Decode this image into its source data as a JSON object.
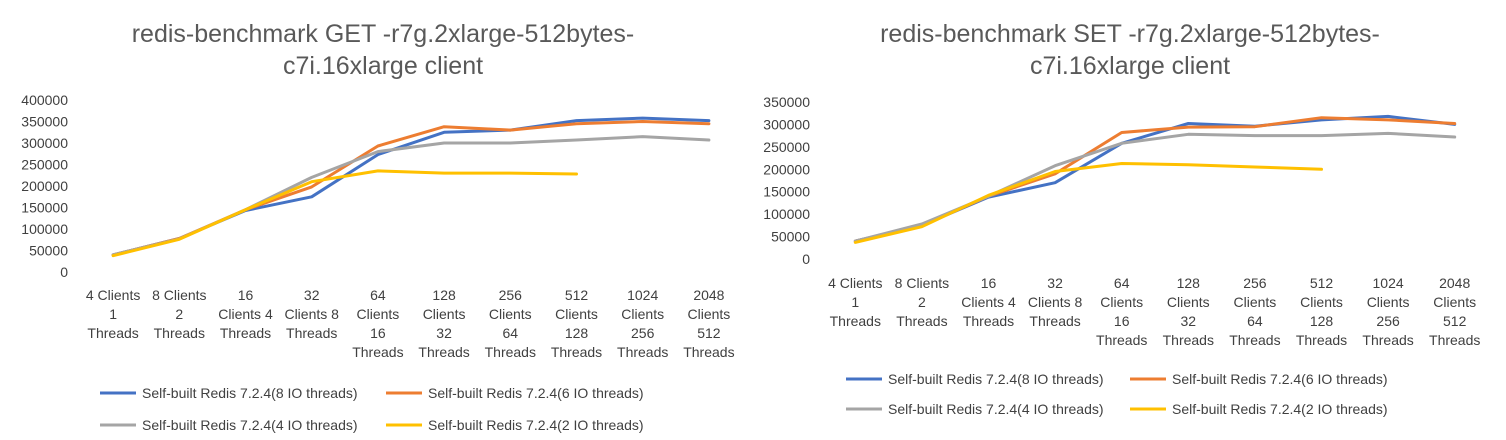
{
  "chart_data": [
    {
      "type": "line",
      "title_lines": [
        "redis-benchmark GET -r7g.2xlarge-512bytes-",
        "c7i.16xlarge client"
      ],
      "categories": [
        [
          "4 Clients",
          "1",
          "Threads"
        ],
        [
          "8 Clients",
          "2",
          "Threads"
        ],
        [
          "16",
          "Clients 4",
          "Threads"
        ],
        [
          "32",
          "Clients 8",
          "Threads"
        ],
        [
          "64",
          "Clients",
          "16",
          "Threads"
        ],
        [
          "128",
          "Clients",
          "32",
          "Threads"
        ],
        [
          "256",
          "Clients",
          "64",
          "Threads"
        ],
        [
          "512",
          "Clients",
          "128",
          "Threads"
        ],
        [
          "1024",
          "Clients",
          "256",
          "Threads"
        ],
        [
          "2048",
          "Clients",
          "512",
          "Threads"
        ]
      ],
      "ylim": [
        0,
        400000
      ],
      "yticks": [
        "0",
        "50000",
        "100000",
        "150000",
        "200000",
        "250000",
        "300000",
        "350000",
        "400000"
      ],
      "grid": false,
      "legend_position": "bottom",
      "series": [
        {
          "name": "Self-built Redis 7.2.4(8 IO threads)",
          "color": "#4472C4",
          "values": [
            40000,
            78000,
            143000,
            175000,
            273000,
            325000,
            330000,
            352000,
            358000,
            352000
          ]
        },
        {
          "name": "Self-built Redis 7.2.4(6 IO threads)",
          "color": "#ED7D31",
          "values": [
            40000,
            78000,
            145000,
            198000,
            293000,
            338000,
            330000,
            345000,
            350000,
            345000
          ]
        },
        {
          "name": "Self-built Redis 7.2.4(4 IO threads)",
          "color": "#A5A5A5",
          "values": [
            40000,
            77000,
            145000,
            220000,
            280000,
            300000,
            300000,
            307000,
            315000,
            307000
          ]
        },
        {
          "name": "Self-built Redis 7.2.4(2 IO threads)",
          "color": "#FFC000",
          "values": [
            38000,
            76000,
            145000,
            210000,
            235000,
            230000,
            230000,
            228000,
            null,
            null
          ]
        }
      ]
    },
    {
      "type": "line",
      "title_lines": [
        "redis-benchmark SET -r7g.2xlarge-512bytes-",
        "c7i.16xlarge client"
      ],
      "categories": [
        [
          "4 Clients",
          "1",
          "Threads"
        ],
        [
          "8 Clients",
          "2",
          "Threads"
        ],
        [
          "16",
          "Clients 4",
          "Threads"
        ],
        [
          "32",
          "Clients 8",
          "Threads"
        ],
        [
          "64",
          "Clients",
          "16",
          "Threads"
        ],
        [
          "128",
          "Clients",
          "32",
          "Threads"
        ],
        [
          "256",
          "Clients",
          "64",
          "Threads"
        ],
        [
          "512",
          "Clients",
          "128",
          "Threads"
        ],
        [
          "1024",
          "Clients",
          "256",
          "Threads"
        ],
        [
          "2048",
          "Clients",
          "512",
          "Threads"
        ]
      ],
      "ylim": [
        0,
        350000
      ],
      "yticks": [
        "0",
        "50000",
        "100000",
        "150000",
        "200000",
        "250000",
        "300000",
        "350000"
      ],
      "grid": false,
      "legend_position": "bottom",
      "series": [
        {
          "name": "Self-built Redis 7.2.4(8 IO threads)",
          "color": "#4472C4",
          "values": [
            40000,
            75000,
            138000,
            170000,
            258000,
            302000,
            296000,
            310000,
            318000,
            300000
          ]
        },
        {
          "name": "Self-built Redis 7.2.4(6 IO threads)",
          "color": "#ED7D31",
          "values": [
            40000,
            75000,
            140000,
            190000,
            282000,
            294000,
            295000,
            315000,
            310000,
            302000
          ]
        },
        {
          "name": "Self-built Redis 7.2.4(4 IO threads)",
          "color": "#A5A5A5",
          "values": [
            40000,
            78000,
            140000,
            208000,
            258000,
            278000,
            275000,
            275000,
            280000,
            272000
          ]
        },
        {
          "name": "Self-built Redis 7.2.4(2 IO threads)",
          "color": "#FFC000",
          "values": [
            37000,
            72000,
            142000,
            195000,
            213000,
            210000,
            205000,
            200000,
            null,
            null
          ]
        }
      ]
    }
  ]
}
